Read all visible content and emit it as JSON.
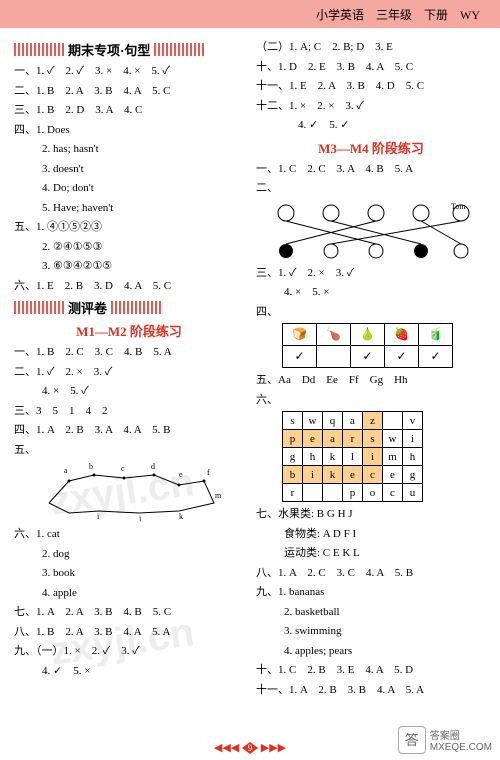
{
  "header": {
    "text": "小学英语　三年级　下册　WY"
  },
  "left": {
    "sec1": {
      "title": "期末专项·句型"
    },
    "a1": "一、1. ✓　2. ✓　3. ×　4. ×　5. ✓",
    "a2": "二、1. B　2. A　3. B　4. A　5. C",
    "a3": "三、1. B　2. D　3. A　4. C",
    "a4": "四、1. Does",
    "a4b": "2. has; hasn't",
    "a4c": "3. doesn't",
    "a4d": "4. Do; don't",
    "a4e": "5. Have; haven't",
    "a5": "五、1. ④①⑤②③",
    "a5b": "2. ②④①⑤③",
    "a5c": "3. ⑥③④②①⑤",
    "a6": "六、1. E　2. B　3. D　4. A　5. C",
    "sec2": {
      "title": "测评卷"
    },
    "red1": "M1—M2 阶段练习",
    "b1": "一、1. B　2. C　3. C　4. B　5. A",
    "b2": "二、1. ✓　2. ×　3. ✓",
    "b2b": "4. ×　5. ✓",
    "b3": "三、3　5　1　4　2",
    "b4": "四、1. A　2. B　3. A　4. A　5. B",
    "b5": "五、",
    "b6": "六、1. cat",
    "b6b": "2. dog",
    "b6c": "3. book",
    "b6d": "4. apple",
    "b7": "七、1. A　2. A　3. B　4. B　5. C",
    "b8": "八、1. B　2. A　3. B　4. A　5. A",
    "b9": "九、（一）1. ×　2. ✓　3. ✓",
    "b9b": "4. ✓　5. ×"
  },
  "right": {
    "c1": "（二）1. A; C　2. B; D　3. E",
    "c2": "十、1. D　2. E　3. B　4. A　5. C",
    "c3": "十一、1. E　2. A　3. B　4. D　5. C",
    "c4": "十二、1. ×　2. ×　3. ✓",
    "c4b": "4. ✓　5. ✓",
    "red2": "M3—M4 阶段练习",
    "d1": "一、1. C　2. C　3. A　4. B　5. A",
    "d2": "二、",
    "d3": "三、1. ✓　2. ×　3. ✓",
    "d3b": "4. ×　5. ×",
    "d4": "四、",
    "table": {
      "row1": [
        "🍞",
        "🍗",
        "🍐",
        "🍓",
        "🧃"
      ],
      "row2": [
        "✓",
        "",
        "✓",
        "✓",
        "✓"
      ]
    },
    "d5": "五、Aa　Dd　Ee　Ff　Gg　Hh",
    "d6": "六、",
    "ws": [
      [
        "s",
        "w",
        "q",
        "a",
        "z",
        "",
        "v"
      ],
      [
        "p",
        "e",
        "a",
        "r",
        "s",
        "w",
        "i"
      ],
      [
        "g",
        "h",
        "k",
        "l",
        "i",
        "m",
        "h"
      ],
      [
        "b",
        "i",
        "k",
        "e",
        "c",
        "e",
        "g"
      ],
      [
        "r",
        "",
        "",
        "p",
        "o",
        "c",
        "u"
      ]
    ],
    "d7": "七、水果类: B G H J",
    "d7b": "食物类: A D F I",
    "d7c": "运动类: C E K L",
    "d8": "八、1. A　2. C　3. C　4. A　5. B",
    "d9": "九、1. bananas",
    "d9b": "2. basketball",
    "d9c": "3. swimming",
    "d9d": "4. apples; pears",
    "d10": "十、1. C　2. B　3. E　4. A　5. D",
    "d11": "十一、1. A　2. B　3. B　4. A　5. A"
  },
  "page": "9",
  "watermark": "zxyjl.cn",
  "brand": {
    "text": "答案圈",
    "url": "MXEQE.COM"
  }
}
